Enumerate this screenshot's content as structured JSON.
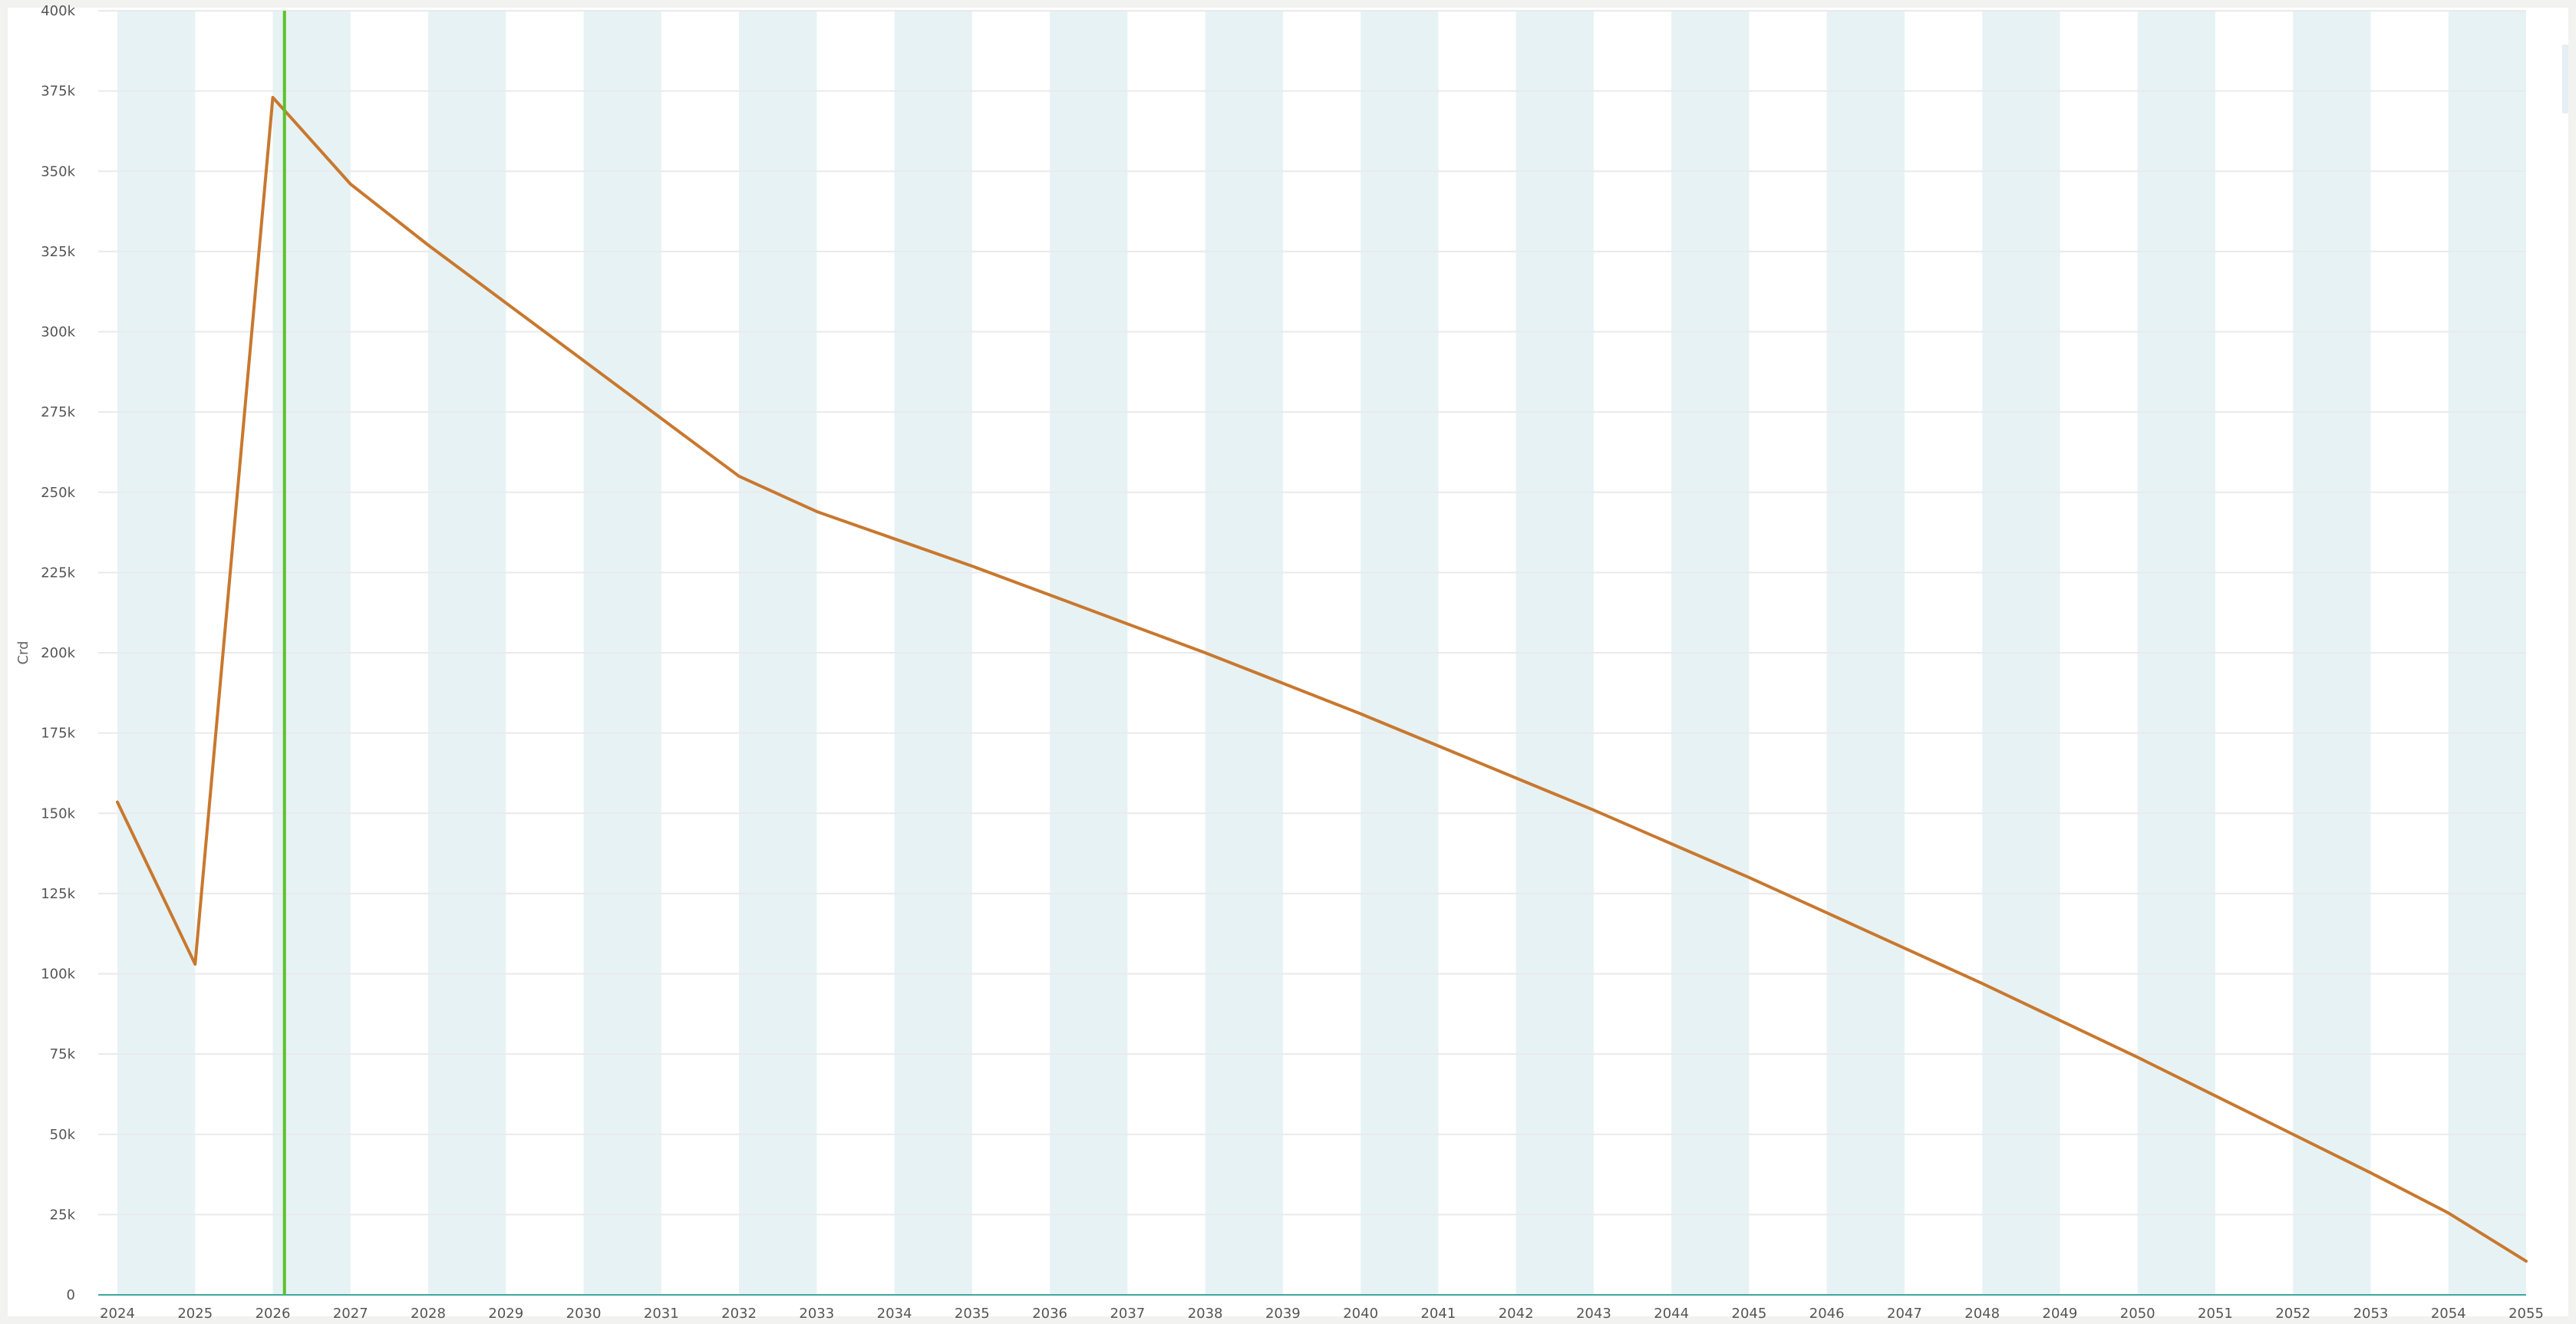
{
  "chart_data": {
    "type": "line",
    "title": "",
    "xlabel": "",
    "ylabel": "Crd",
    "x": [
      2024,
      2025,
      2026,
      2027,
      2028,
      2029,
      2030,
      2031,
      2032,
      2033,
      2034,
      2035,
      2036,
      2037,
      2038,
      2039,
      2040,
      2041,
      2042,
      2043,
      2044,
      2045,
      2046,
      2047,
      2048,
      2049,
      2050,
      2051,
      2052,
      2053,
      2054,
      2055
    ],
    "x_tick_labels": [
      "2024",
      "2025",
      "2026",
      "2027",
      "2028",
      "2029",
      "2030",
      "2031",
      "2032",
      "2033",
      "2034",
      "2035",
      "2036",
      "2037",
      "2038",
      "2039",
      "2040",
      "2041",
      "2042",
      "2043",
      "2044",
      "2045",
      "2046",
      "2047",
      "2048",
      "2049",
      "2050",
      "2051",
      "2052",
      "2053",
      "2054",
      "2055"
    ],
    "y_ticks": [
      0,
      25000,
      50000,
      75000,
      100000,
      125000,
      150000,
      175000,
      200000,
      225000,
      250000,
      275000,
      300000,
      325000,
      350000,
      375000,
      400000
    ],
    "y_tick_labels": [
      "0",
      "25k",
      "50k",
      "75k",
      "100k",
      "125k",
      "150k",
      "175k",
      "200k",
      "225k",
      "250k",
      "275k",
      "300k",
      "325k",
      "350k",
      "375k",
      "400k"
    ],
    "ylim": [
      0,
      400000
    ],
    "xlim": [
      2024,
      2055
    ],
    "series": [
      {
        "color": "#c8782e",
        "values": [
          153500,
          103000,
          373000,
          346000,
          327000,
          309000,
          291000,
          273000,
          255000,
          244000,
          235500,
          227000,
          218000,
          209000,
          200000,
          190500,
          181000,
          171000,
          161000,
          151000,
          140500,
          130000,
          119000,
          108000,
          97000,
          85500,
          74000,
          62000,
          50000,
          38000,
          25500,
          10500
        ]
      }
    ],
    "marker_line": {
      "x": 2026.15,
      "color": "#5ac22a"
    },
    "grid": true,
    "band_color": "#e7f2f4",
    "grid_color": "#e9eaec",
    "baseline_color": "#3fa8a0",
    "legend": "none"
  }
}
